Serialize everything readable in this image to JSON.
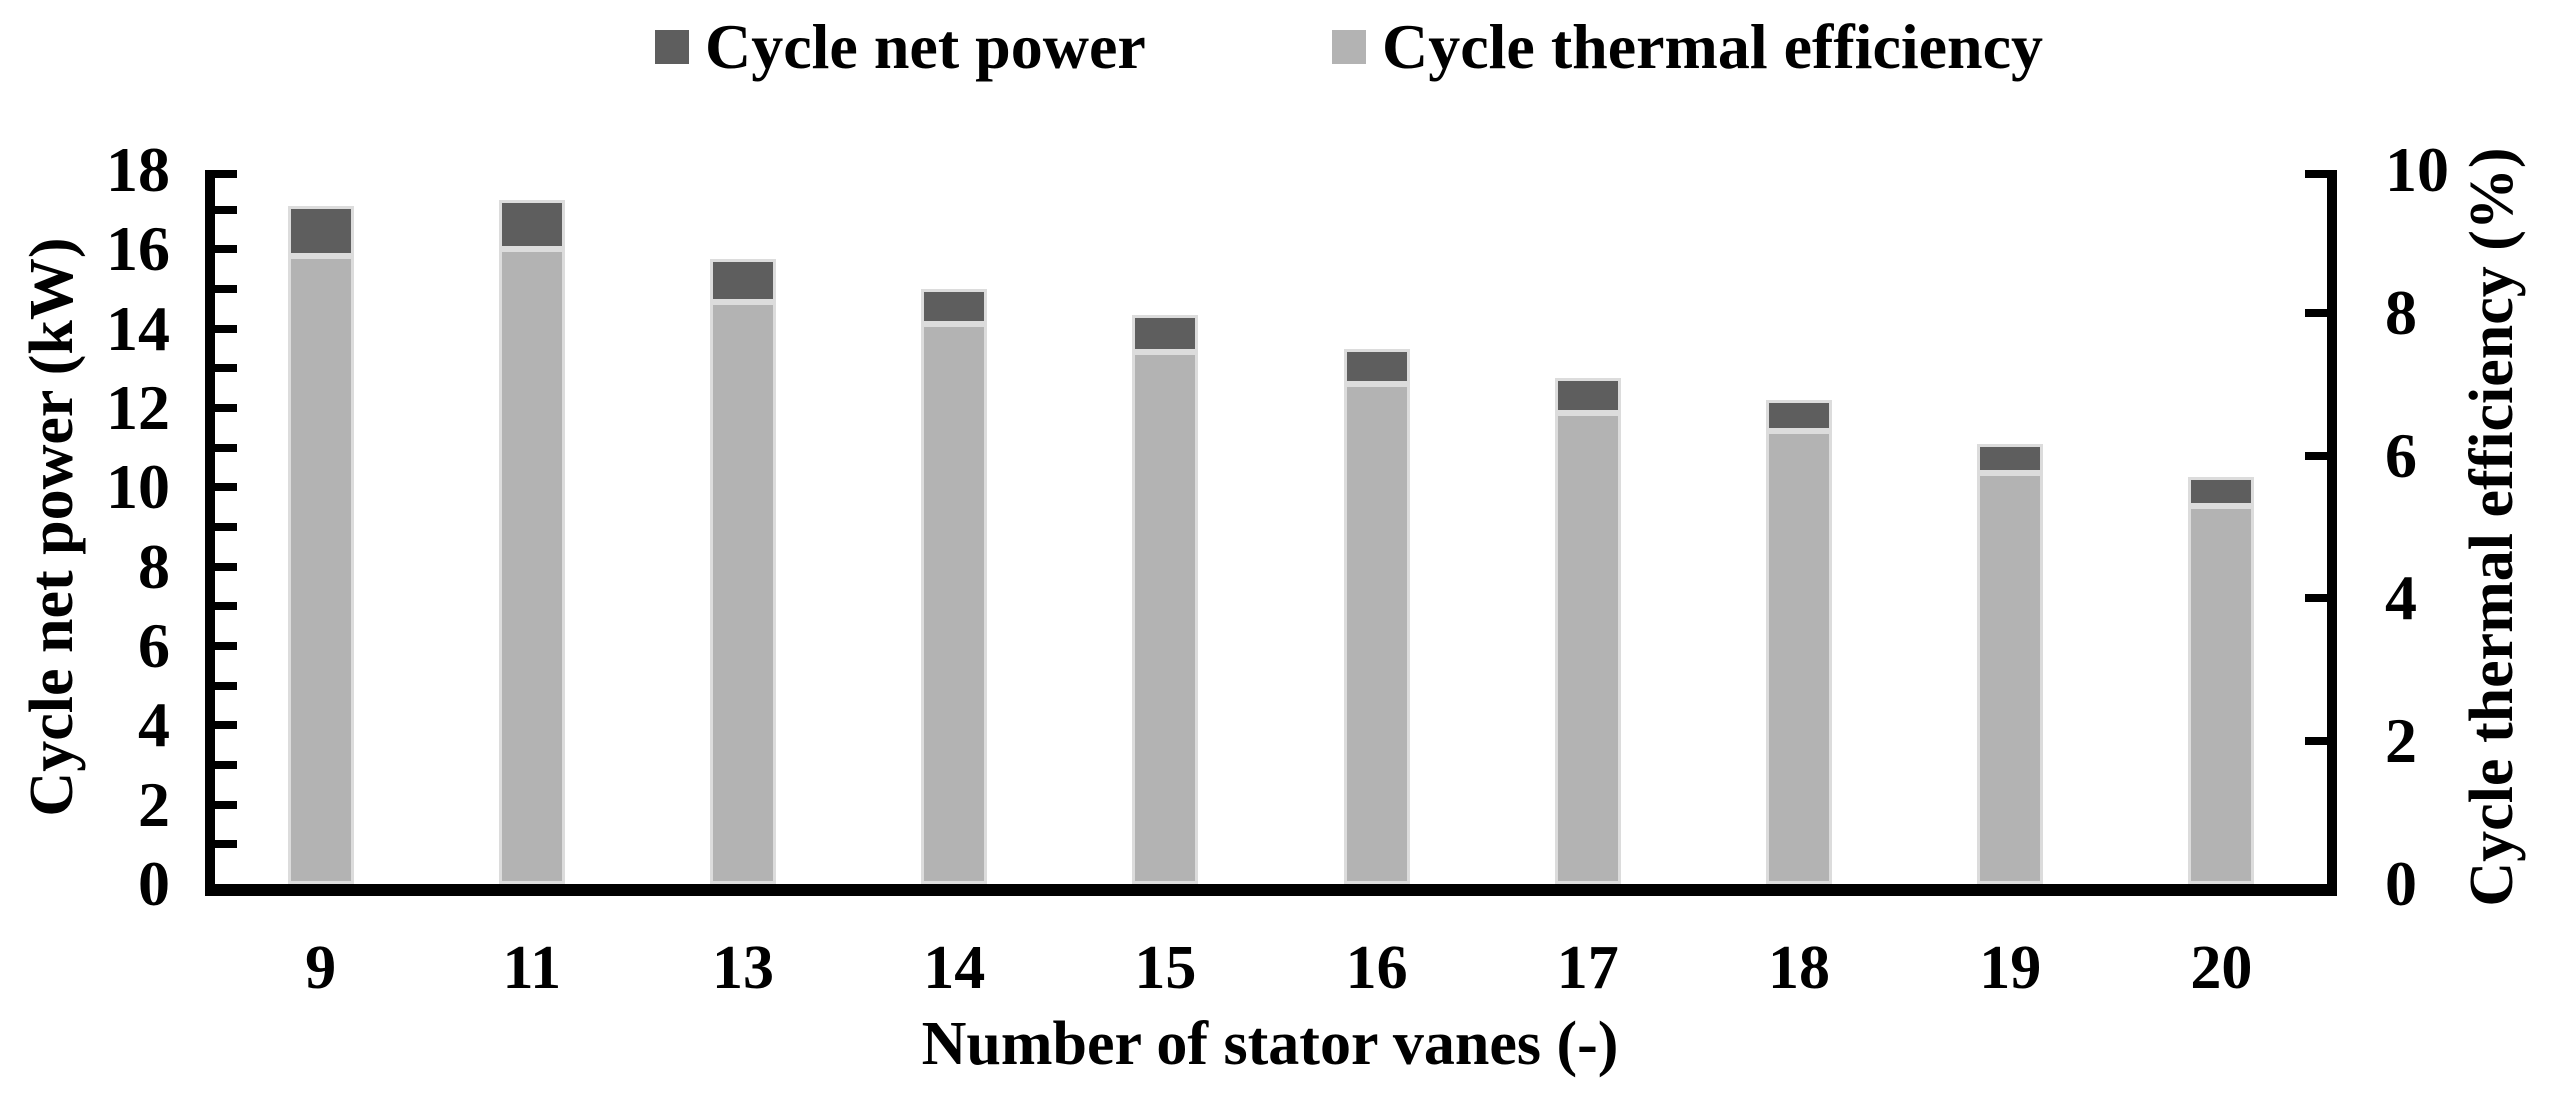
{
  "page": {
    "background": "#ffffff"
  },
  "chart_data": {
    "type": "bar",
    "stacked_appearance": true,
    "categories": [
      "9",
      "11",
      "13",
      "14",
      "15",
      "16",
      "17",
      "18",
      "19",
      "20"
    ],
    "series": [
      {
        "name": "Cycle net power",
        "axis": "left",
        "unit": "kW",
        "color": "#5e5e5e",
        "values": [
          17.1,
          17.25,
          15.75,
          15.0,
          14.35,
          13.5,
          12.75,
          12.2,
          11.1,
          10.25
        ]
      },
      {
        "name": "Cycle thermal efficiency",
        "axis": "right",
        "unit": "%",
        "color": "#b3b3b3",
        "values": [
          8.8,
          8.9,
          8.15,
          7.85,
          7.45,
          7.0,
          6.6,
          6.35,
          5.75,
          5.3
        ]
      }
    ],
    "left_axis": {
      "label": "Cycle net power (kW)",
      "min": 0,
      "max": 18,
      "major_step": 2,
      "minor_step": 1
    },
    "right_axis": {
      "label": "Cycle thermal efficiency (%)",
      "min": 0,
      "max": 10,
      "major_step": 2
    },
    "x_axis": {
      "label": "Number of stator vanes (-)"
    },
    "legend": {
      "position": "top",
      "entries": [
        "Cycle net power",
        "Cycle thermal efficiency"
      ]
    },
    "grid": false,
    "axis_color": "#000000",
    "note": "Light gray column height is read on the right axis (%); dark gray cap extends to the net power value on the left axis (kW)."
  }
}
